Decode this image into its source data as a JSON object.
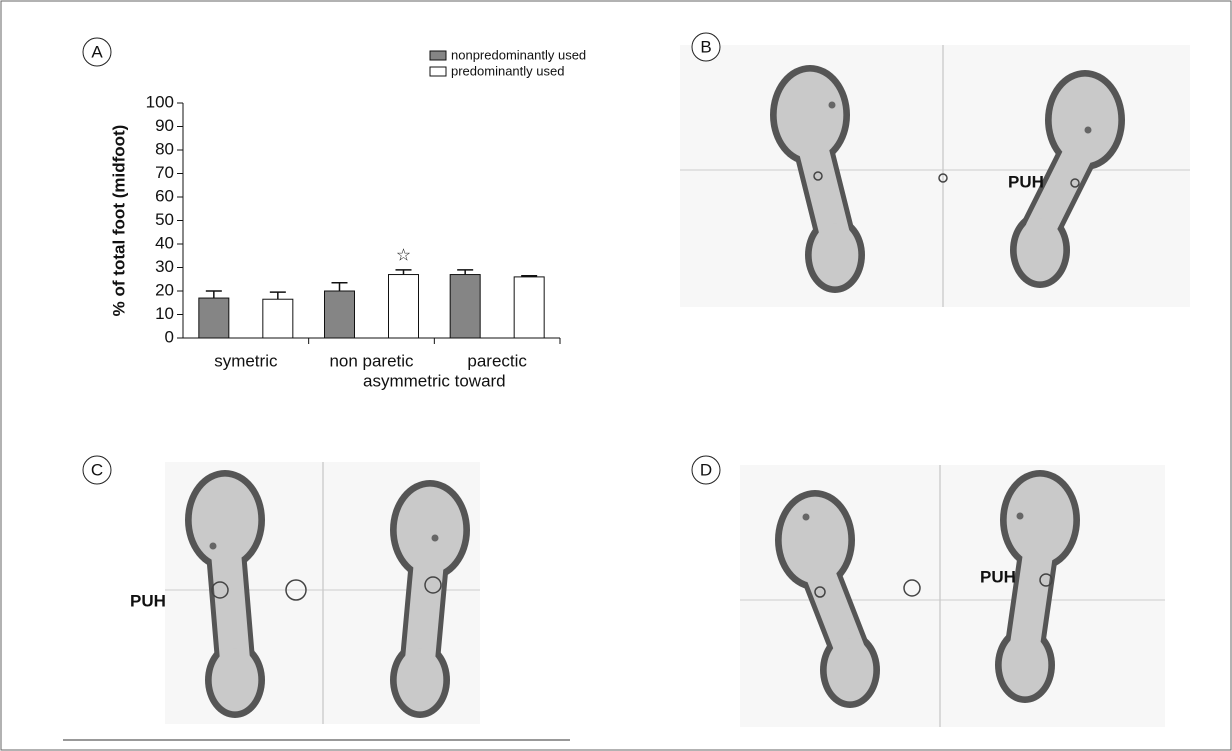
{
  "chart_data": {
    "type": "bar",
    "y_label": "% of total foot (midfoot)",
    "x_label": "asymmetric toward",
    "categories": [
      "symetric",
      "non paretic",
      "parectic"
    ],
    "series": [
      {
        "name": "nonpredominantly used",
        "color": "#858585",
        "values": [
          17,
          20,
          27
        ],
        "errors": [
          3,
          3.5,
          2
        ]
      },
      {
        "name": "predominantly used",
        "color": "#ffffff",
        "values": [
          16.5,
          27,
          26
        ],
        "errors": [
          3,
          2,
          0.5
        ]
      }
    ],
    "ylim": [
      0,
      100
    ],
    "yticks": [
      0,
      10,
      20,
      30,
      40,
      50,
      60,
      70,
      80,
      90,
      100
    ],
    "annotations": [
      "☆"
    ]
  },
  "panel_labels": [
    "A",
    "B",
    "C",
    "D"
  ],
  "footprint_labels": [
    "PUH",
    "PUH",
    "PUH"
  ]
}
